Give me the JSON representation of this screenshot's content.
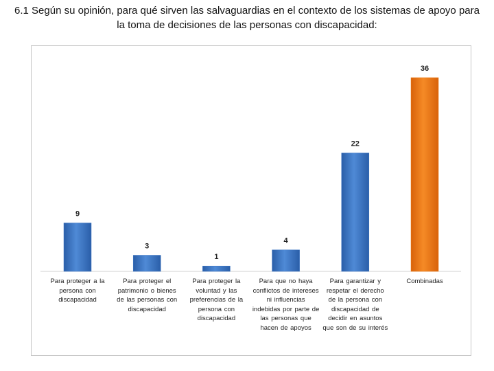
{
  "title": "6.1 Según su opinión, para qué sirven las salvaguardias en el contexto de los sistemas de apoyo para la toma de decisiones de las personas con discapacidad:",
  "chart_data": {
    "type": "bar",
    "categories": [
      "Para proteger a la persona con discapacidad",
      "Para proteger el patrimonio o bienes de las personas con discapacidad",
      "Para proteger la voluntad y las preferencias de la persona con discapacidad",
      "Para que no haya conflictos de intereses ni influencias indebidas por parte de las personas que hacen de apoyos",
      "Para garantizar y respetar el derecho de la persona con discapacidad de decidir en asuntos que son de su interés",
      "Combinadas"
    ],
    "values": [
      9,
      3,
      1,
      4,
      22,
      36
    ],
    "bar_colors": [
      "#3a74c4",
      "#3a74c4",
      "#3a74c4",
      "#3a74c4",
      "#3a74c4",
      "#f07a12"
    ],
    "data_labels": [
      "9",
      "3",
      "1",
      "4",
      "22",
      "36"
    ],
    "ylim": [
      0,
      36
    ],
    "xlabel": "",
    "ylabel": "",
    "grid": false,
    "legend": "none"
  }
}
